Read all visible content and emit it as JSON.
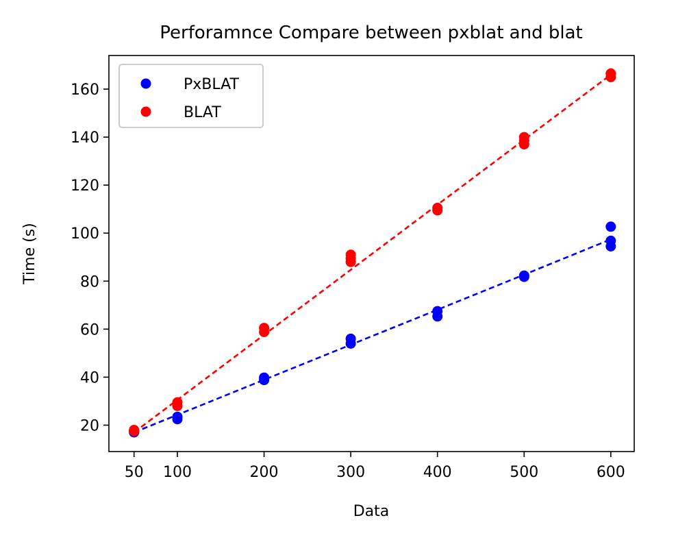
{
  "chart_data": {
    "type": "scatter",
    "title": "Perforamnce Compare between pxblat and blat",
    "xlabel": "Data",
    "ylabel": "Time (s)",
    "xlim": [
      21,
      627
    ],
    "ylim": [
      9,
      174
    ],
    "xticks": [
      50,
      100,
      200,
      300,
      400,
      500,
      600
    ],
    "yticks": [
      20,
      40,
      60,
      80,
      100,
      120,
      140,
      160
    ],
    "grid": false,
    "legend_position": "top-left",
    "series": [
      {
        "name": "PxBLAT",
        "color": "#0000ff",
        "points": [
          [
            50,
            17.0
          ],
          [
            50,
            17.5
          ],
          [
            100,
            22.5
          ],
          [
            100,
            23.5
          ],
          [
            200,
            38.8
          ],
          [
            200,
            39.8
          ],
          [
            300,
            54.0
          ],
          [
            300,
            56.0
          ],
          [
            400,
            65.3
          ],
          [
            400,
            67.5
          ],
          [
            500,
            81.8
          ],
          [
            500,
            82.3
          ],
          [
            600,
            94.5
          ],
          [
            600,
            96.8
          ],
          [
            600,
            102.7
          ]
        ],
        "trend": [
          [
            50,
            17.0
          ],
          [
            100,
            24.3
          ],
          [
            200,
            38.9
          ],
          [
            300,
            53.5
          ],
          [
            400,
            68.1
          ],
          [
            500,
            82.7
          ],
          [
            600,
            97.4
          ]
        ]
      },
      {
        "name": "BLAT",
        "color": "#ff0000",
        "points": [
          [
            50,
            17.5
          ],
          [
            50,
            18.0
          ],
          [
            100,
            28.0
          ],
          [
            100,
            29.5
          ],
          [
            200,
            58.8
          ],
          [
            200,
            60.5
          ],
          [
            300,
            88.0
          ],
          [
            300,
            89.5
          ],
          [
            300,
            91.0
          ],
          [
            400,
            109.5
          ],
          [
            400,
            110.5
          ],
          [
            500,
            137.0
          ],
          [
            500,
            138.5
          ],
          [
            500,
            140.0
          ],
          [
            600,
            165.0
          ],
          [
            600,
            166.5
          ]
        ],
        "trend": [
          [
            50,
            17.0
          ],
          [
            600,
            166.0
          ]
        ]
      }
    ]
  }
}
